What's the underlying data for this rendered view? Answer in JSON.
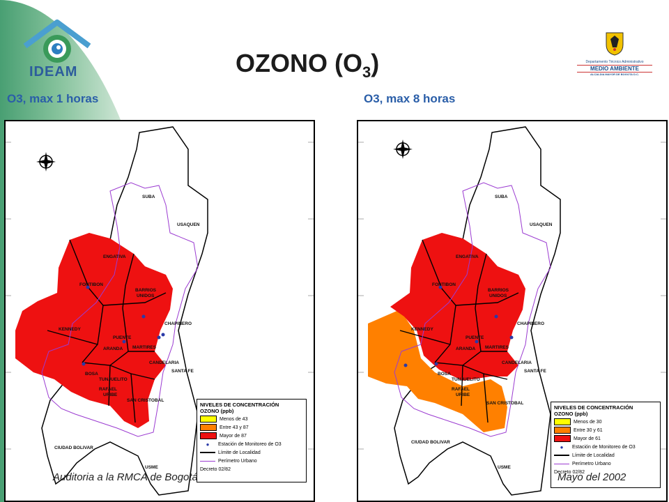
{
  "header": {
    "title": "OZONO (O",
    "title_sub": "3",
    "title_end": ")"
  },
  "logos": {
    "left_word": "IDEAM",
    "right_dept": "Departamento Técnico Administrativo",
    "right_main": "MEDIO AMBIENTE",
    "right_sub": "ALCALDIA MAYOR DE BOGOTA D.C."
  },
  "maps": [
    {
      "heading": "O3, max 1 horas",
      "legend_title": "NIVELES DE CONCENTRACIÓN",
      "legend_sub": "OZONO (ppb)",
      "legend_items": [
        {
          "label": "Menos de 43",
          "color": "#ffff00"
        },
        {
          "label": "Entre 43 y 87",
          "color": "#ff8000"
        },
        {
          "label": "Mayor de 87",
          "color": "#ee1111"
        }
      ],
      "legend_station": "Estación de Monitoreo de O3",
      "legend_limit": "Límite de Localidad",
      "legend_perim": "Perímetro Urbano",
      "decree": "Decreto 02/82"
    },
    {
      "heading": "O3, max 8 horas",
      "legend_title": "NIVELES DE CONCENTRACIÓN",
      "legend_sub": "OZONO (ppb)",
      "legend_items": [
        {
          "label": "Menos de 30",
          "color": "#ffff00"
        },
        {
          "label": "Entre 30 y 61",
          "color": "#ff8000"
        },
        {
          "label": "Mayor de 61",
          "color": "#ee1111"
        }
      ],
      "legend_station": "Estación de Monitoreo de O3",
      "legend_limit": "Límite de Localidad",
      "legend_perim": "Perímetro Urbano",
      "decree": "Decreto 02/82"
    }
  ],
  "places": {
    "suba": "SUBA",
    "usaquen": "USAQUEN",
    "engativa": "ENGATIVA",
    "fontibon": "FONTIBON",
    "barrios": "BARRIOS",
    "unidos": "UNIDOS",
    "chapinero": "CHAPINERO",
    "kennedy": "KENNEDY",
    "puente": "PUENTE",
    "aranda": "ARANDA",
    "martires": "MARTIRES",
    "candelaria": "CANDELARIA",
    "santafe": "SANTA FE",
    "bosa": "BOSA",
    "tunjuelito": "TUNJUELITO",
    "rafael": "RAFAEL",
    "uribe": "URIBE",
    "sancristobal": "SAN CRISTOBAL",
    "ciudadbolivar": "CIUDAD BOLIVAR",
    "usme": "USME"
  },
  "footer": {
    "left": "Auditoria a la RMCA de Bogotá",
    "right": "Mayo del 2002"
  },
  "colors": {
    "heading": "#2a5ea8",
    "red": "#ee1111",
    "orange": "#ff8000",
    "perimeter": "#9b3bd1"
  }
}
